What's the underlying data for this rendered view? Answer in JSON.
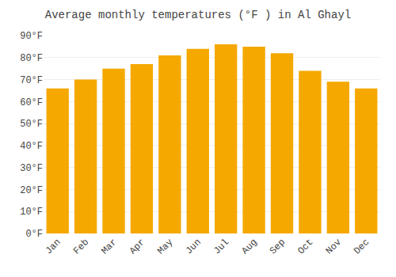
{
  "chart_data": {
    "type": "bar",
    "title": "Average monthly temperatures (°F ) in Al Ghayl",
    "categories": [
      "Jan",
      "Feb",
      "Mar",
      "Apr",
      "May",
      "Jun",
      "Jul",
      "Aug",
      "Sep",
      "Oct",
      "Nov",
      "Dec"
    ],
    "values": [
      66,
      70,
      75,
      77,
      81,
      84,
      86,
      85,
      82,
      74,
      69,
      66
    ],
    "color": "#F5A800",
    "ylim": [
      0,
      90
    ],
    "yticks": [
      {
        "value": 0,
        "label": "0°F"
      },
      {
        "value": 10,
        "label": "10°F"
      },
      {
        "value": 20,
        "label": "20°F"
      },
      {
        "value": 30,
        "label": "30°F"
      },
      {
        "value": 40,
        "label": "40°F"
      },
      {
        "value": 50,
        "label": "50°F"
      },
      {
        "value": 60,
        "label": "60°F"
      },
      {
        "value": 70,
        "label": "70°F"
      },
      {
        "value": 80,
        "label": "80°F"
      },
      {
        "value": 90,
        "label": "90°F"
      }
    ],
    "grid": true
  }
}
